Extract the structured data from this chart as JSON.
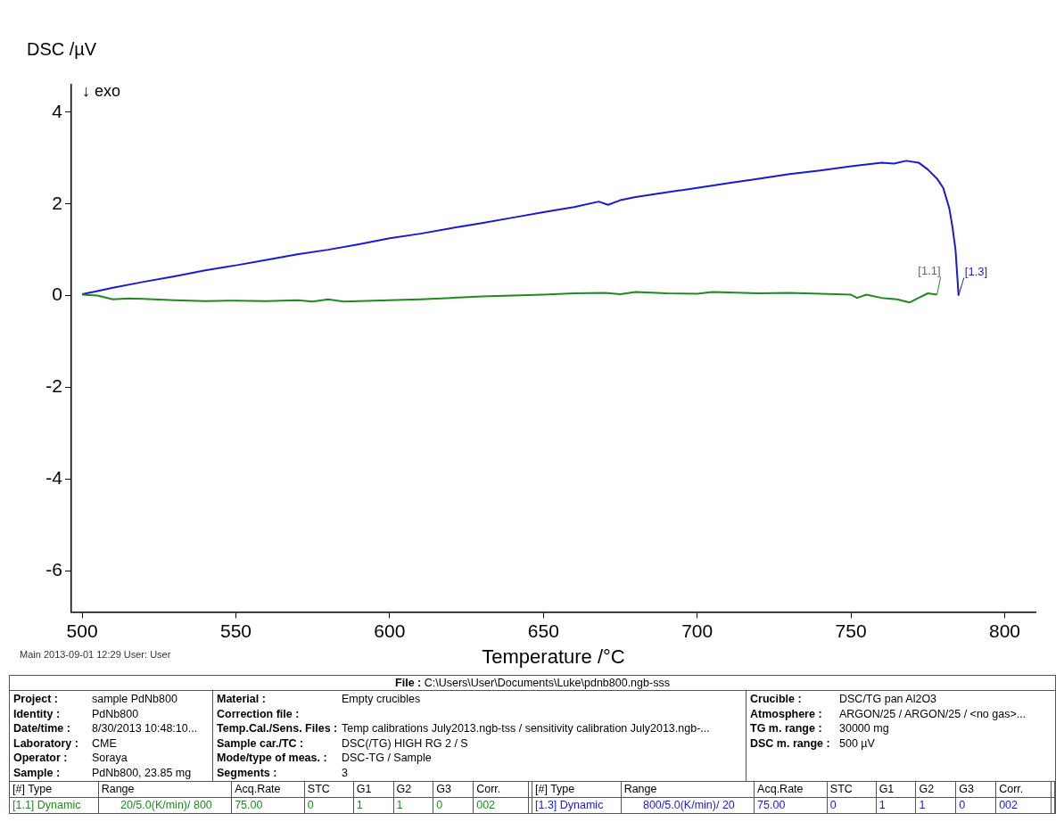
{
  "chart_data": {
    "type": "line",
    "xlabel": "Temperature /°C",
    "ylabel": "DSC /µV",
    "xlim": [
      496.5,
      810
    ],
    "xticks": [
      500,
      550,
      600,
      650,
      700,
      750,
      800
    ],
    "ylim": [
      -6.9,
      4.6
    ],
    "yticks": [
      -6,
      -4,
      -2,
      0,
      2,
      4
    ],
    "series": [
      {
        "name": "[1.1]",
        "color": "#1f8a1f",
        "x": [
          500,
          505,
          510,
          515,
          520,
          530,
          540,
          550,
          560,
          570,
          575,
          580,
          585,
          590,
          600,
          610,
          620,
          630,
          640,
          650,
          660,
          670,
          675,
          680,
          690,
          700,
          705,
          710,
          720,
          730,
          740,
          750,
          752,
          755,
          760,
          765,
          769,
          772,
          775,
          778
        ],
        "values": [
          0.02,
          0.0,
          -0.08,
          -0.06,
          -0.07,
          -0.1,
          -0.12,
          -0.11,
          -0.12,
          -0.1,
          -0.13,
          -0.08,
          -0.13,
          -0.12,
          -0.1,
          -0.08,
          -0.05,
          -0.02,
          0.0,
          0.02,
          0.05,
          0.06,
          0.03,
          0.08,
          0.05,
          0.04,
          0.08,
          0.07,
          0.05,
          0.06,
          0.04,
          0.02,
          -0.05,
          0.02,
          -0.05,
          -0.08,
          -0.15,
          -0.05,
          0.05,
          0.02
        ]
      },
      {
        "name": "[1.3]",
        "color": "#1a1ad6",
        "x": [
          500,
          505,
          510,
          520,
          530,
          540,
          550,
          560,
          570,
          580,
          590,
          600,
          610,
          620,
          630,
          640,
          650,
          660,
          668,
          671,
          675,
          680,
          690,
          700,
          710,
          720,
          730,
          740,
          750,
          760,
          764,
          768,
          772,
          775,
          778,
          780,
          782,
          783,
          784,
          784.5,
          785
        ],
        "values": [
          0.03,
          0.1,
          0.17,
          0.3,
          0.42,
          0.55,
          0.66,
          0.78,
          0.9,
          1.0,
          1.12,
          1.25,
          1.35,
          1.47,
          1.58,
          1.7,
          1.82,
          1.93,
          2.05,
          1.98,
          2.08,
          2.15,
          2.25,
          2.35,
          2.45,
          2.55,
          2.65,
          2.73,
          2.82,
          2.9,
          2.88,
          2.94,
          2.9,
          2.75,
          2.55,
          2.35,
          1.9,
          1.5,
          1.0,
          0.5,
          0.0
        ]
      }
    ],
    "annotations": [
      "↓ exo",
      "Main   2013-09-01 12:29   User: User",
      "File :",
      "C:\\Users\\User\\Documents\\Luke\\pdnb800.ngb-sss",
      "Project :",
      "sample PdNb800",
      "Identity :",
      "PdNb800",
      "Date/time :",
      "8/30/2013 10:48:10...",
      "Laboratory :",
      "CME",
      "Operator :",
      "Soraya",
      "Sample :",
      "PdNb800, 23.85 mg",
      "Material :",
      "Empty crucibles",
      "Correction file :",
      "Temp.Cal./Sens. Files :",
      "Temp calibrations July2013.ngb-tss / sensitivity calibration July2013.ngb-...",
      "Sample car./TC :",
      "DSC(/TG) HIGH RG 2 / S",
      "Mode/type of meas. :",
      "DSC-TG / Sample",
      "Segments :",
      "3",
      "Crucible :",
      "DSC/TG pan Al2O3",
      "Atmosphere :",
      "ARGON/25 / ARGON/25 / <no gas>...",
      "TG m. range :",
      "30000 mg",
      "DSC m. range :",
      "500 µV",
      "[#] Type",
      "Range",
      "Acq.Rate",
      "STC",
      "G1",
      "G2",
      "G3",
      "Corr.",
      "[1.1] Dynamic",
      "20/5.0(K/min)/ 800",
      "75.00",
      "0",
      "1",
      "1",
      "0",
      "002",
      "[#] Type",
      "Range",
      "Acq.Rate",
      "STC",
      "G1",
      "G2",
      "G3",
      "Corr.",
      "[1.3] Dynamic",
      "800/5.0(K/min)/  20",
      "75.00",
      "0",
      "1",
      "1",
      "0",
      "002"
    ]
  }
}
